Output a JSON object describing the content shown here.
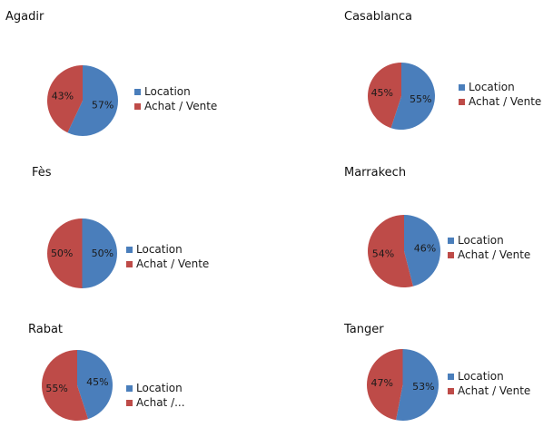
{
  "colors": {
    "location": "#4a7ebb",
    "achat_vente": "#be4b48"
  },
  "chart_data": [
    {
      "type": "pie",
      "title": "Agadir",
      "labels": [
        "Location",
        "Achat / Vente"
      ],
      "legend_labels": [
        "Location",
        "Achat / Vente"
      ],
      "values": [
        57,
        43
      ],
      "value_labels": [
        "57%",
        "43%"
      ],
      "legend": "right"
    },
    {
      "type": "pie",
      "title": "Casablanca",
      "labels": [
        "Location",
        "Achat / Vente"
      ],
      "legend_labels": [
        "Location",
        "Achat / Vente"
      ],
      "values": [
        55,
        45
      ],
      "value_labels": [
        "55%",
        "45%"
      ],
      "legend": "right"
    },
    {
      "type": "pie",
      "title": "Fès",
      "labels": [
        "Location",
        "Achat / Vente"
      ],
      "legend_labels": [
        "Location",
        "Achat / Vente"
      ],
      "values": [
        50,
        50
      ],
      "value_labels": [
        "50%",
        "50%"
      ],
      "legend": "right"
    },
    {
      "type": "pie",
      "title": "Marrakech",
      "labels": [
        "Location",
        "Achat / Vente"
      ],
      "legend_labels": [
        "Location",
        "Achat / Vente"
      ],
      "values": [
        46,
        54
      ],
      "value_labels": [
        "46%",
        "54%"
      ],
      "legend": "right"
    },
    {
      "type": "pie",
      "title": "Rabat",
      "labels": [
        "Location",
        "Achat / Vente"
      ],
      "legend_labels": [
        "Location",
        "Achat /..."
      ],
      "values": [
        45,
        55
      ],
      "value_labels": [
        "45%",
        "55%"
      ],
      "legend": "right"
    },
    {
      "type": "pie",
      "title": "Tanger",
      "labels": [
        "Location",
        "Achat / Vente"
      ],
      "legend_labels": [
        "Location",
        "Achat / Vente"
      ],
      "values": [
        53,
        47
      ],
      "value_labels": [
        "53%",
        "47%"
      ],
      "legend": "right"
    }
  ]
}
